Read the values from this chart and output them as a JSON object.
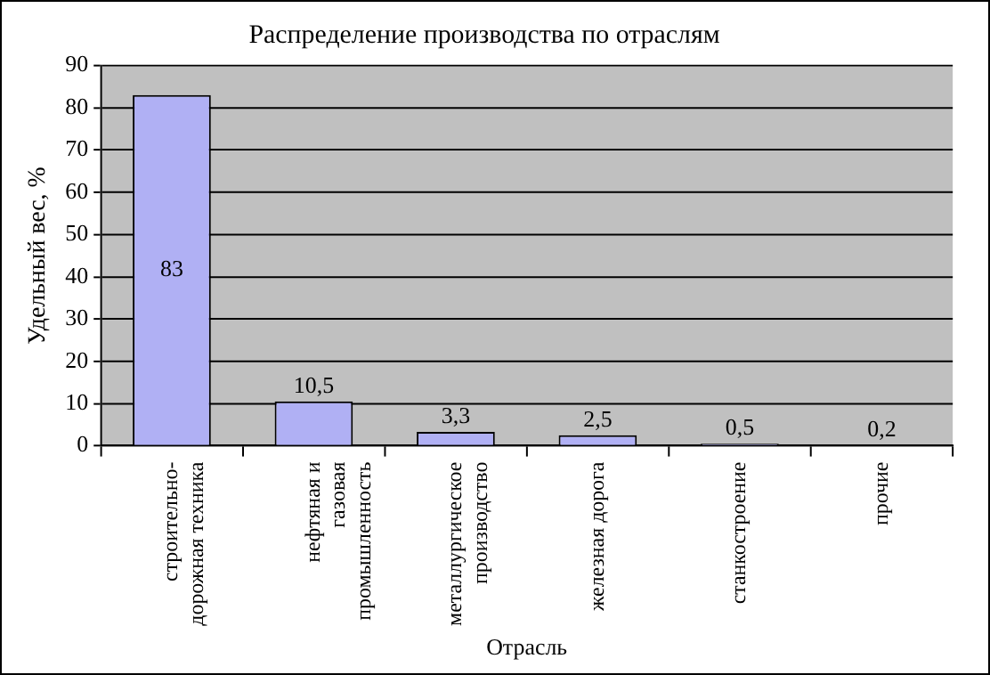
{
  "chart_data": {
    "type": "bar",
    "title": "Распределение производства по отраслям",
    "xlabel": "Отрасль",
    "ylabel": "Удельный вес, %",
    "categories": [
      "строительно-дорожная техника",
      "нефтяная и газовая промышленность",
      "металлургическое производство",
      "железная дорога",
      "станкостроение",
      "прочие"
    ],
    "values": [
      83,
      10.5,
      3.3,
      2.5,
      0.5,
      0.2
    ],
    "value_labels": [
      "83",
      "10,5",
      "3,3",
      "2,5",
      "0,5",
      "0,2"
    ],
    "color": "#b0b0f4",
    "ylim": [
      0,
      90
    ],
    "yticks": [
      0,
      10,
      20,
      30,
      40,
      50,
      60,
      70,
      80,
      90
    ],
    "grid": "y",
    "legend": false
  }
}
